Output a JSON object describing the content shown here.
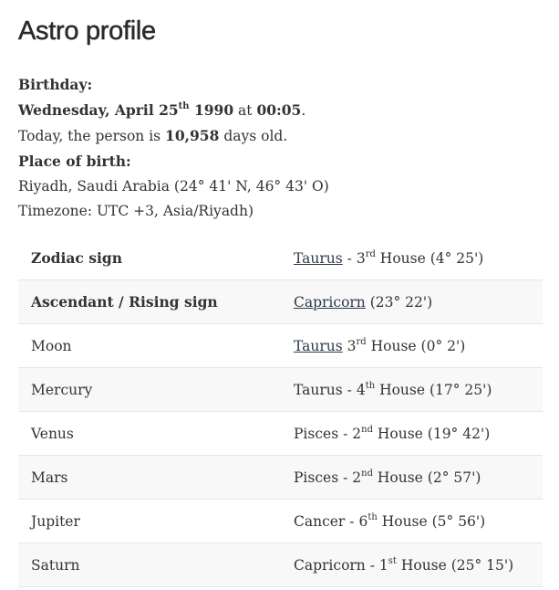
{
  "title": "Astro profile",
  "birthday": {
    "label": "Birthday:",
    "weekday_date": "Wednesday, April 25",
    "day_suffix": "th",
    "year": "1990",
    "at": "at",
    "time": "00:05",
    "period": ".",
    "age_prefix": "Today, the person is",
    "age_days": "10,958",
    "age_suffix": "days old."
  },
  "place": {
    "label": "Place of birth:",
    "location": "Riyadh, Saudi Arabia (24° 41' N, 46° 43' O)",
    "timezone": "Timezone: UTC +3, Asia/Riyadh)"
  },
  "rows": [
    {
      "label": "Zodiac sign",
      "bold": true,
      "sign": "Taurus",
      "link": true,
      "sep": " - ",
      "num": "3",
      "suf": "rd",
      "rest": " House (4° 25')"
    },
    {
      "label": "Ascendant / Rising sign",
      "bold": true,
      "sign": "Capricorn",
      "link": true,
      "sep": "",
      "num": "",
      "suf": "",
      "rest": " (23° 22')"
    },
    {
      "label": "Moon",
      "sign": "Taurus",
      "link": true,
      "sep": " ",
      "num": "3",
      "suf": "rd",
      "rest": " House (0° 2')"
    },
    {
      "label": "Mercury",
      "sign": "Taurus",
      "link": false,
      "sep": " - ",
      "num": "4",
      "suf": "th",
      "rest": " House (17° 25')"
    },
    {
      "label": "Venus",
      "sign": "Pisces",
      "link": false,
      "sep": " - ",
      "num": "2",
      "suf": "nd",
      "rest": " House (19° 42')"
    },
    {
      "label": "Mars",
      "sign": "Pisces",
      "link": false,
      "sep": " - ",
      "num": "2",
      "suf": "nd",
      "rest": " House (2° 57')"
    },
    {
      "label": "Jupiter",
      "sign": "Cancer",
      "link": false,
      "sep": " - ",
      "num": "6",
      "suf": "th",
      "rest": " House (5° 56')"
    },
    {
      "label": "Saturn",
      "sign": "Capricorn",
      "link": false,
      "sep": " - ",
      "num": "1",
      "suf": "st",
      "rest": " House (25° 15')"
    }
  ]
}
